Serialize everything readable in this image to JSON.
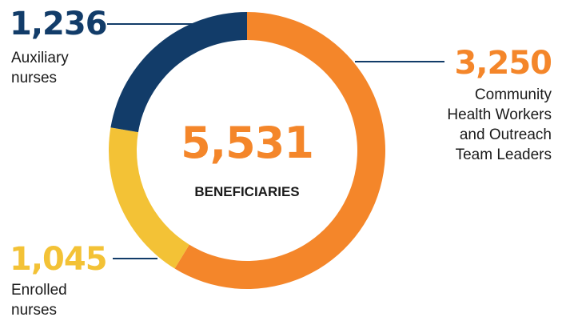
{
  "chart_data": {
    "type": "pie",
    "style": "donut",
    "total": {
      "value": "5,531",
      "label": "BENEFICIARIES"
    },
    "segments": [
      {
        "value": 3250,
        "display": "3,250",
        "label_lines": [
          "Community",
          "Health Workers",
          "and Outreach",
          "Team Leaders"
        ],
        "color": "#F4862A"
      },
      {
        "value": 1045,
        "display": "1,045",
        "label_lines": [
          "Enrolled",
          "nurses"
        ],
        "color": "#F3C236"
      },
      {
        "value": 1236,
        "display": "1,236",
        "label_lines": [
          "Auxiliary",
          "nurses"
        ],
        "color": "#123C69"
      }
    ]
  },
  "colors": {
    "total_text": "#F4862A",
    "label_text": "#1a1a1a",
    "leader_line": "#123C69"
  }
}
